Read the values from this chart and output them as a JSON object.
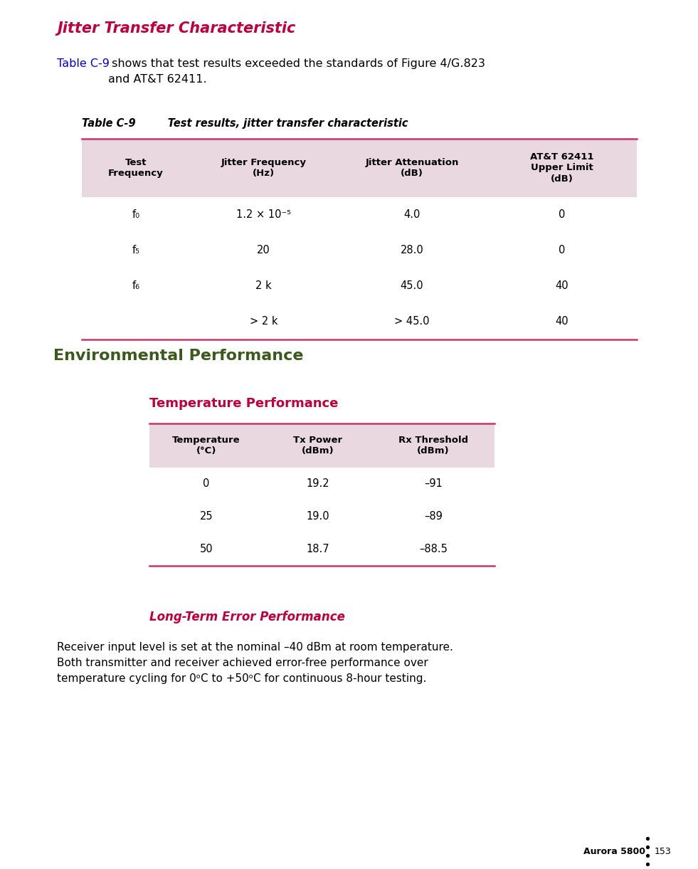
{
  "page_bg": "#ffffff",
  "footer_text": "Aurora 5800",
  "page_number": "153",
  "section1_title": "Jitter Transfer Characteristic",
  "section1_title_color": "#c0003c",
  "intro_blue": "Table C-9",
  "intro_blue_color": "#0000dd",
  "intro_rest": " shows that test results exceeded the standards of Figure 4/G.823\nand AT&T 62411.",
  "table1_label": "Table C-9",
  "table1_caption": "      Test results, jitter transfer characteristic",
  "table1_header_bg": "#ead8e0",
  "table1_headers": [
    "Test\nFrequency",
    "Jitter Frequency\n(Hz)",
    "Jitter Attenuation\n(dB)",
    "AT&T 62411\nUpper Limit\n(dB)"
  ],
  "table1_rows": [
    [
      "f₀",
      "1.2 × 10⁻⁵",
      "4.0",
      "0"
    ],
    [
      "f₅",
      "20",
      "28.0",
      "0"
    ],
    [
      "f₆",
      "2 k",
      "45.0",
      "40"
    ],
    [
      "",
      "> 2 k",
      "> 45.0",
      "40"
    ]
  ],
  "section2_title": "Environmental Performance",
  "section2_title_color": "#3a5a1a",
  "subsection_title": "Temperature Performance",
  "subsection_title_color": "#c0003c",
  "table2_header_bg": "#ead8e0",
  "table2_headers": [
    "Temperature\n(°C)",
    "Tx Power\n(dBm)",
    "Rx Threshold\n(dBm)"
  ],
  "table2_rows": [
    [
      "0",
      "19.2",
      "–91"
    ],
    [
      "25",
      "19.0",
      "–89"
    ],
    [
      "50",
      "18.7",
      "–88.5"
    ]
  ],
  "longterm_title": "Long-Term Error Performance",
  "longterm_title_color": "#c0003c",
  "longterm_body_lines": [
    "Receiver input level is set at the nominal –40 dBm at room temperature.",
    "Both transmitter and receiver achieved error-free performance over",
    "temperature cycling for 0ᵒC to +50ᵒC for continuous 8-hour testing."
  ],
  "sep_color": "#cc3366"
}
